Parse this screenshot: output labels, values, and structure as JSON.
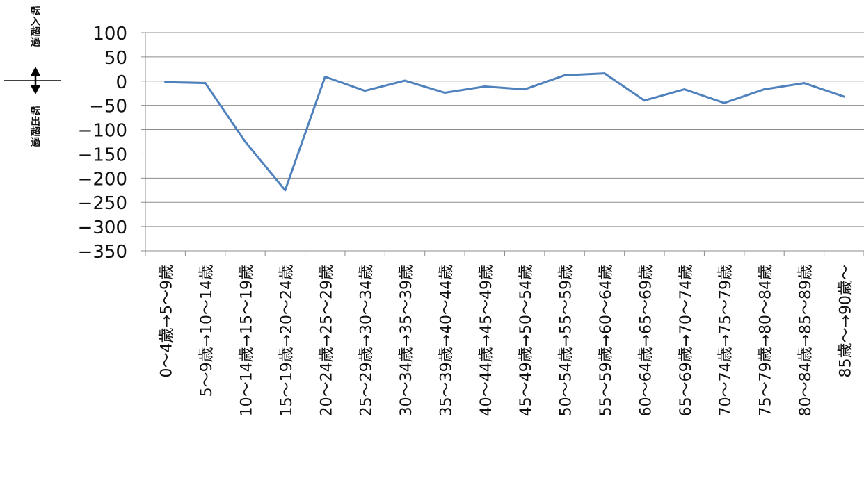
{
  "side_labels": {
    "inflow": "転入超過",
    "outflow": "転出超過"
  },
  "colors": {
    "series_line": "#4f81bd",
    "grid": "#8c8c8c",
    "axis": "#8c8c8c",
    "text": "#111111"
  },
  "chart_data": {
    "type": "line",
    "title": "",
    "xlabel": "",
    "ylabel": "",
    "ylim": [
      -350,
      100
    ],
    "ytick_step": 50,
    "yticks": [
      "100",
      "50",
      "0",
      "−50",
      "−100",
      "−150",
      "−200",
      "−250",
      "−300",
      "−350"
    ],
    "grid": true,
    "legend": "none",
    "categories": [
      "0～4歳→5～9歳",
      "5～9歳→10～14歳",
      "10～14歳→15～19歳",
      "15～19歳→20～24歳",
      "20～24歳→25～29歳",
      "25～29歳→30～34歳",
      "30～34歳→35～39歳",
      "35～39歳→40～44歳",
      "40～44歳→45～49歳",
      "45～49歳→50～54歳",
      "50～54歳→55～59歳",
      "55～59歳→60～64歳",
      "60～64歳→65～69歳",
      "65～69歳→70～74歳",
      "70～74歳→75～79歳",
      "75～79歳→80～84歳",
      "80～84歳→85～89歳",
      "85歳～→90歳～"
    ],
    "series": [
      {
        "values": [
          -2,
          -4,
          -125,
          -225,
          9,
          -20,
          1,
          -24,
          -11,
          -17,
          12,
          16,
          -40,
          -17,
          -45,
          -17,
          -4,
          -32
        ]
      }
    ]
  }
}
